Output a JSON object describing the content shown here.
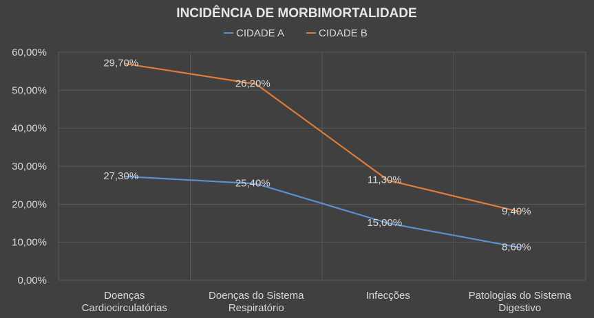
{
  "chart_data": {
    "type": "line",
    "title": "INCIDÊNCIA  DE MORBIMORTALIDADE",
    "categories": [
      [
        "Doenças",
        "Cardiocirculatórias"
      ],
      [
        "Doenças do Sistema",
        "Respiratório"
      ],
      [
        "Infecções"
      ],
      [
        "Patologias do Sistema",
        "Digestivo"
      ]
    ],
    "series": [
      {
        "name": "CIDADE A",
        "color": "#5b8fd0",
        "values": [
          27.3,
          25.4,
          15.0,
          8.6
        ],
        "labels": [
          "27,30%",
          "25,40%",
          "15,00%",
          "8,60%"
        ]
      },
      {
        "name": "CIDADE B",
        "color": "#e07b39",
        "values": [
          29.7,
          26.2,
          11.3,
          9.4
        ],
        "labels": [
          "29,70%",
          "26,20%",
          "11,30%",
          "9,40%"
        ]
      }
    ],
    "stacked": true,
    "ylim": [
      0,
      60
    ],
    "yticks": [
      "0,00%",
      "10,00%",
      "20,00%",
      "30,00%",
      "40,00%",
      "50,00%",
      "60,00%"
    ],
    "grid": true,
    "legend_position": "top"
  }
}
